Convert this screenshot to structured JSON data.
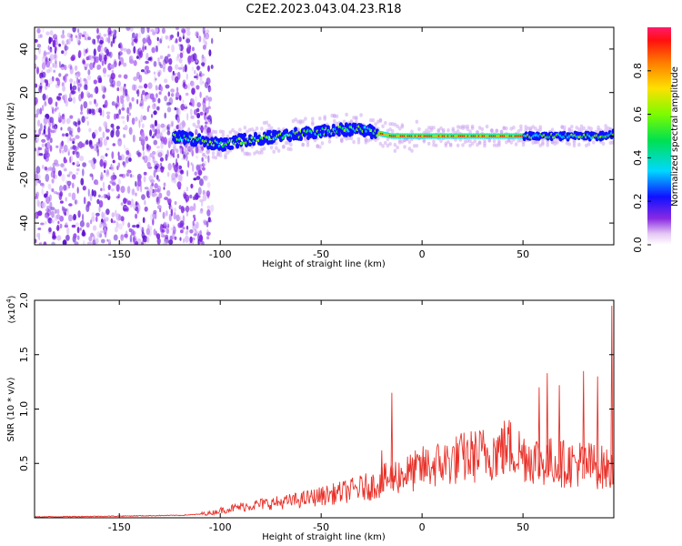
{
  "title": "C2E2.2023.043.04.23.R18",
  "chart_data": [
    {
      "type": "heatmap",
      "name": "spectrogram",
      "xlabel": "Height of straight line (km)",
      "ylabel": "Frequency (Hz)",
      "xlim": [
        -192,
        95
      ],
      "ylim": [
        -50,
        50
      ],
      "xticks": [
        -150,
        -100,
        -50,
        0,
        50
      ],
      "yticks": [
        -40,
        -20,
        0,
        20,
        40
      ],
      "ridge": {
        "x": [
          -123,
          -110,
          -100,
          -90,
          -80,
          -70,
          -60,
          -50,
          -40,
          -30,
          -25,
          -20,
          -15,
          -10,
          -5,
          0,
          20,
          50,
          60,
          70,
          80,
          90,
          95
        ],
        "y": [
          0,
          -2,
          -4,
          -2,
          -1,
          0,
          1,
          2,
          3,
          3,
          2,
          1,
          0,
          0,
          0,
          0,
          0,
          0,
          0,
          0,
          0,
          0,
          1
        ]
      },
      "colorbar": {
        "label": "Normalized spectral amplitude",
        "range": [
          0,
          1
        ],
        "ticks": [
          0.0,
          0.2,
          0.4,
          0.6,
          0.8
        ],
        "tick_labels": [
          "0.0",
          "0.2",
          "0.4",
          "0.6",
          "0.8"
        ]
      }
    },
    {
      "type": "line",
      "name": "snr",
      "xlabel": "Height of straight line (km)",
      "ylabel": "SNR (10 * v/v)",
      "scale_label": "(x10",
      "scale_exp": "4",
      "scale_close": ")",
      "color": "#e8322a",
      "xlim": [
        -192,
        95
      ],
      "ylim": [
        0,
        2.0
      ],
      "xticks": [
        -150,
        -100,
        -50,
        0,
        50
      ],
      "yticks": [
        0.5,
        1.0,
        1.5,
        2.0
      ],
      "ytick_labels": [
        "0.5",
        "1.0",
        "1.5",
        "2.0"
      ],
      "envelope": {
        "x": [
          -192,
          -150,
          -120,
          -105,
          -100,
          -90,
          -80,
          -70,
          -60,
          -50,
          -40,
          -30,
          -25,
          -20,
          -15,
          -10,
          -5,
          0,
          10,
          20,
          30,
          40,
          42,
          45,
          50,
          55,
          60,
          65,
          70,
          75,
          80,
          85,
          90,
          95
        ],
        "y": [
          0.01,
          0.02,
          0.03,
          0.05,
          0.08,
          0.12,
          0.15,
          0.17,
          0.2,
          0.24,
          0.28,
          0.33,
          0.35,
          0.4,
          0.45,
          0.48,
          0.5,
          0.55,
          0.6,
          0.66,
          0.7,
          0.75,
          0.8,
          0.75,
          0.7,
          0.66,
          0.62,
          0.62,
          0.6,
          0.6,
          0.6,
          0.58,
          0.55,
          0.5
        ]
      },
      "spikes": [
        {
          "x": -15,
          "y": 1.15
        },
        {
          "x": -20,
          "y": 0.62
        },
        {
          "x": 40,
          "y": 0.82
        },
        {
          "x": 58,
          "y": 1.2
        },
        {
          "x": 62,
          "y": 1.33
        },
        {
          "x": 68,
          "y": 1.22
        },
        {
          "x": 80,
          "y": 1.35
        },
        {
          "x": 87,
          "y": 1.3
        },
        {
          "x": 94,
          "y": 1.95
        }
      ]
    }
  ]
}
